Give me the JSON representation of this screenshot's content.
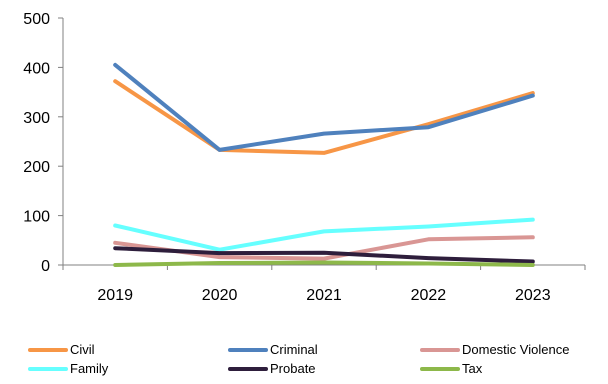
{
  "chart_data": {
    "type": "line",
    "categories": [
      "2019",
      "2020",
      "2021",
      "2022",
      "2023"
    ],
    "ylim": [
      0,
      500
    ],
    "yticks": [
      "0",
      "100",
      "200",
      "300",
      "400",
      "500"
    ],
    "grid": false,
    "legend_position": "bottom",
    "series": [
      {
        "name": "Civil",
        "color": "#F79646",
        "values": [
          372,
          233,
          227,
          285,
          348
        ]
      },
      {
        "name": "Criminal",
        "color": "#4F81BD",
        "values": [
          405,
          233,
          266,
          279,
          343
        ]
      },
      {
        "name": "Domestic Violence",
        "color": "#D99694",
        "values": [
          45,
          16,
          13,
          52,
          56
        ]
      },
      {
        "name": "Family",
        "color": "#66FFFF",
        "values": [
          80,
          31,
          68,
          78,
          92
        ]
      },
      {
        "name": "Probate",
        "color": "#2E1E3C",
        "values": [
          34,
          24,
          25,
          14,
          7
        ]
      },
      {
        "name": "Tax",
        "color": "#8DB84A",
        "values": [
          0,
          4,
          5,
          3,
          0
        ]
      }
    ]
  }
}
